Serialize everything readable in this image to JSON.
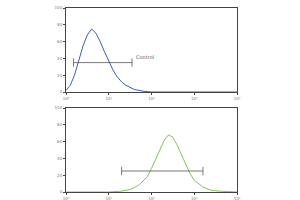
{
  "chart_data": [
    {
      "type": "line",
      "color": "#3a5fb0",
      "log": "x",
      "x": [
        1,
        1.26,
        1.58,
        2,
        2.51,
        3.16,
        3.98,
        5.01,
        6.31,
        7.94,
        10,
        12.6,
        15.8,
        20,
        25.1,
        31.6,
        39.8,
        63.1,
        100,
        10000
      ],
      "values": [
        2,
        8,
        20,
        38,
        55,
        68,
        75,
        70,
        60,
        48,
        36,
        26,
        18,
        12,
        8,
        5,
        3,
        1,
        0,
        0
      ],
      "xlim": [
        1,
        10000
      ],
      "xticks": [
        {
          "value": 1,
          "label": "10⁰"
        },
        {
          "value": 10,
          "label": "10¹"
        },
        {
          "value": 100,
          "label": "10²"
        },
        {
          "value": 1000,
          "label": "10³"
        },
        {
          "value": 10000,
          "label": "10⁴"
        }
      ],
      "ylim": [
        0,
        100
      ],
      "yticks": [
        0,
        20,
        40,
        60,
        80,
        100
      ],
      "annotations": [
        {
          "text": "Control",
          "x": 40,
          "y": 36
        }
      ],
      "gates": [
        {
          "x": [
            1.5,
            35
          ],
          "y": 35
        }
      ]
    },
    {
      "type": "line",
      "color": "#7ec850",
      "log": "x",
      "x": [
        1,
        10,
        20,
        31.6,
        50.1,
        79.4,
        100,
        126,
        158,
        200,
        251,
        316,
        398,
        501,
        631,
        794,
        1000,
        1585,
        2512,
        3981,
        10000
      ],
      "values": [
        0,
        0,
        1,
        3,
        8,
        18,
        28,
        40,
        52,
        62,
        68,
        65,
        56,
        44,
        32,
        22,
        14,
        6,
        2,
        1,
        0
      ],
      "xlim": [
        1,
        10000
      ],
      "xticks": [
        {
          "value": 1,
          "label": "10⁰"
        },
        {
          "value": 10,
          "label": "10¹"
        },
        {
          "value": 100,
          "label": "10²"
        },
        {
          "value": 1000,
          "label": "10³"
        },
        {
          "value": 10000,
          "label": "10⁴"
        }
      ],
      "ylim": [
        0,
        100
      ],
      "yticks": [
        0,
        20,
        40,
        60,
        80,
        100
      ],
      "gates": [
        {
          "x": [
            20,
            1600
          ],
          "y": 25
        }
      ]
    }
  ]
}
